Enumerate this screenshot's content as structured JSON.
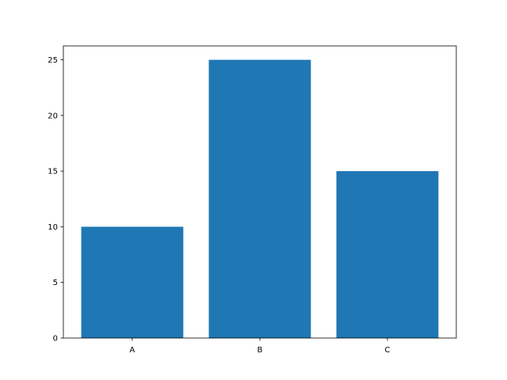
{
  "chart_data": {
    "type": "bar",
    "title": "",
    "xlabel": "",
    "ylabel": "",
    "categories": [
      "A",
      "B",
      "C"
    ],
    "values": [
      10,
      25,
      15
    ],
    "ylim": [
      0,
      26.25
    ],
    "xlim": [
      -0.54,
      2.54
    ],
    "yticks": [
      0,
      5,
      10,
      15,
      20,
      25
    ],
    "bar_width": 0.8,
    "bar_color": "#1f77b4",
    "grid": false
  }
}
